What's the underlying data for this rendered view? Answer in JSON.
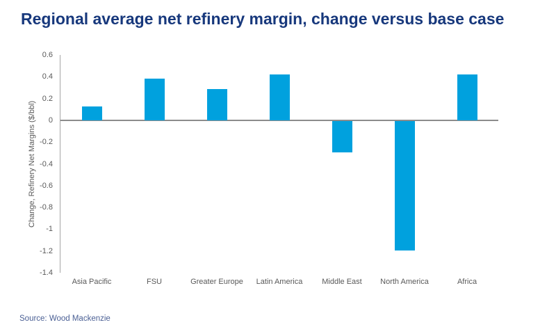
{
  "source": {
    "label": "Source: Wood Mackenzie"
  },
  "colors": {
    "bar": "#00A1DE",
    "title": "#17387C",
    "source_text": "#4A5F94",
    "axis_text": "#595959",
    "axis_line": "#A6A6A6",
    "zero_line": "#8C8C8C",
    "background": "#FFFFFF"
  },
  "chart_data": {
    "type": "bar",
    "title": "Regional average net refinery margin, change versus base case",
    "categories": [
      "Asia Pacific",
      "FSU",
      "Greater Europe",
      "Latin America",
      "Middle East",
      "North America",
      "Africa"
    ],
    "values": [
      0.13,
      0.38,
      0.29,
      0.42,
      -0.29,
      -1.19,
      0.42
    ],
    "xlabel": "",
    "ylabel": "Change, Refinery Net Margins ($/bbl)",
    "ylim": [
      -1.4,
      0.6
    ],
    "ytick_step": 0.2,
    "ytick_labels": [
      "0.6",
      "0.4",
      "0.2",
      "0",
      "-0.2",
      "-0.4",
      "-0.6",
      "-0.8",
      "-1",
      "-1.2",
      "-1.4"
    ],
    "grid": false,
    "legend": false,
    "bar_orientation": "vertical"
  }
}
